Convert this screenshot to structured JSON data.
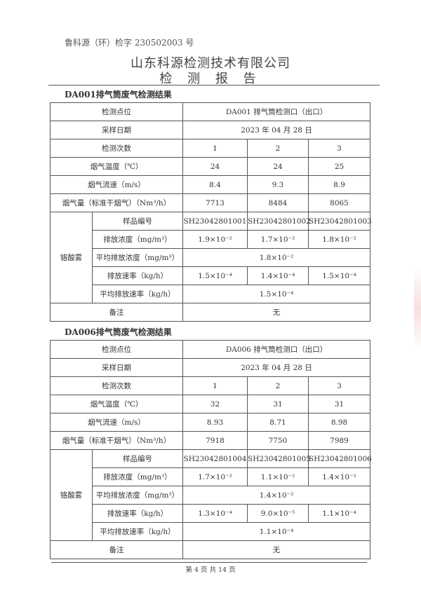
{
  "header": {
    "doc_number": "鲁科源（环）检字 230502003 号",
    "company": "山东科源检测技术有限公司",
    "report_title": "检 测 报 告"
  },
  "sections": [
    {
      "title": "DA001排气筒废气检测结果",
      "point_label": "检测点位",
      "point": "DA001 排气筒检测口（出口）",
      "date_label": "采样日期",
      "date": "2023 年 04 月 28 日",
      "count_label": "检测次数",
      "counts": [
        "1",
        "2",
        "3"
      ],
      "temp_label": "烟气温度（℃）",
      "temps": [
        "24",
        "24",
        "25"
      ],
      "flow_label": "烟气流速（m/s）",
      "flows": [
        "8.4",
        "9.3",
        "8.9"
      ],
      "vol_label": "烟气量（标准干烟气）（Nm³/h）",
      "vols": [
        "7713",
        "8484",
        "8065"
      ],
      "pollutant": "铬酸雾",
      "sample_label": "样品编号",
      "samples": [
        "SH23042801001",
        "SH23042801002",
        "SH23042801003"
      ],
      "conc_label": "排放浓度（mg/m³）",
      "concs": [
        "1.9×10⁻²",
        "1.7×10⁻²",
        "1.8×10⁻²"
      ],
      "avg_conc_label": "平均排放浓度（mg/m³）",
      "avg_conc": "1.8×10⁻²",
      "rate_label": "排放速率（kg/h）",
      "rates": [
        "1.5×10⁻⁴",
        "1.4×10⁻⁴",
        "1.5×10⁻⁴"
      ],
      "avg_rate_label": "平均排放速率（kg/h）",
      "avg_rate": "1.5×10⁻⁴",
      "remark_label": "备注",
      "remark": "无"
    },
    {
      "title": "DA006排气筒废气检测结果",
      "point_label": "检测点位",
      "point": "DA006 排气筒检测口（出口）",
      "date_label": "采样日期",
      "date": "2023 年 04 月 28 日",
      "count_label": "检测次数",
      "counts": [
        "1",
        "2",
        "3"
      ],
      "temp_label": "烟气温度（℃）",
      "temps": [
        "32",
        "31",
        "31"
      ],
      "flow_label": "烟气流速（m/s）",
      "flows": [
        "8.93",
        "8.71",
        "8.98"
      ],
      "vol_label": "烟气量（标准干烟气）（Nm³/h）",
      "vols": [
        "7918",
        "7750",
        "7989"
      ],
      "pollutant": "铬酸雾",
      "sample_label": "样品编号",
      "samples": [
        "SH23042801004",
        "SH23042801005",
        "SH23042801006"
      ],
      "conc_label": "排放浓度（mg/m³）",
      "concs": [
        "1.7×10⁻²",
        "1.1×10⁻²",
        "1.4×10⁻²"
      ],
      "avg_conc_label": "平均排放浓度（mg/m³）",
      "avg_conc": "1.4×10⁻²",
      "rate_label": "排放速率（kg/h）",
      "rates": [
        "1.3×10⁻⁴",
        "9.0×10⁻⁵",
        "1.1×10⁻⁴"
      ],
      "avg_rate_label": "平均排放速率（kg/h）",
      "avg_rate": "1.1×10⁻⁴",
      "remark_label": "备注",
      "remark": "无"
    }
  ],
  "footer": {
    "page": "第 4 页 共 14 页"
  }
}
